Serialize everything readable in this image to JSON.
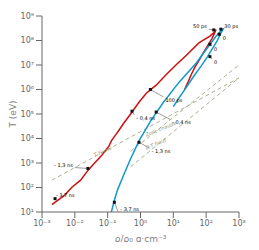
{
  "chart_data": {
    "type": "line",
    "log": true,
    "grid": false,
    "xlabel": "ρ/ρ₀ g·cm⁻³",
    "ylabel": "T (eV)",
    "xlim": [
      0.001,
      1000
    ],
    "ylim": [
      10,
      1000000000
    ],
    "xticks": [
      {
        "value": 0.001,
        "label": "10⁻³"
      },
      {
        "value": 0.01,
        "label": "10⁻²"
      },
      {
        "value": 0.1,
        "label": "10⁻¹"
      },
      {
        "value": 1,
        "label": "10⁰"
      },
      {
        "value": 10,
        "label": "10¹"
      },
      {
        "value": 100,
        "label": "10²"
      },
      {
        "value": 1000,
        "label": "10³"
      }
    ],
    "yticks": [
      {
        "value": 10,
        "label": "10¹"
      },
      {
        "value": 100,
        "label": "10²"
      },
      {
        "value": 1000,
        "label": "10³"
      },
      {
        "value": 10000,
        "label": "10⁴"
      },
      {
        "value": 100000,
        "label": "10⁵"
      },
      {
        "value": 1000000,
        "label": "10⁶"
      },
      {
        "value": 10000000,
        "label": "10⁷"
      },
      {
        "value": 100000000,
        "label": "10⁸"
      },
      {
        "value": 1000000000,
        "label": "10⁹"
      }
    ],
    "series": [
      {
        "color": "#999977",
        "line_style": "dashed",
        "x": [
          0.002,
          1000.0
        ],
        "values": [
          200,
          3000000
        ],
        "label": {
          "text": "T Fermi",
          "x": 0.04,
          "y": 1800
        }
      },
      {
        "color": "#999977",
        "line_style": "dashed",
        "x": [
          0.5,
          1000.0
        ],
        "values": [
          3000,
          10000000
        ],
        "label": {
          "text": "Zone chaude",
          "x": 1.5,
          "y": 12000
        }
      },
      {
        "color": "#999977",
        "line_style": "dashed",
        "x": [
          0.5,
          1000.0
        ],
        "values": [
          700,
          3000000
        ],
        "label": {
          "text": "D-T froid",
          "x": 1.5,
          "y": 3500
        }
      },
      {
        "color": "#cc1111",
        "line_style": "solid",
        "x": [
          0.002,
          0.003,
          0.005,
          0.008,
          0.015,
          0.025,
          0.04,
          0.065,
          0.09,
          0.11,
          0.13,
          0.16,
          0.2,
          0.3,
          0.5,
          0.9,
          1.5,
          3.0,
          6.0,
          12.0,
          25.0,
          60.0,
          130.0,
          180.0,
          200.0,
          200.0,
          180.0,
          150.0,
          110.0,
          80.0,
          60.0,
          45.0,
          35.0,
          28.0,
          22.0
        ],
        "values": [
          20,
          30,
          50,
          100,
          200,
          500,
          1000,
          2000,
          3500,
          5000,
          8000,
          12000,
          18000,
          40000,
          100000,
          300000,
          700000,
          1500000,
          4000000,
          10000000,
          25000000,
          80000000,
          150000000,
          220000000,
          280000000,
          280000000,
          200000000,
          120000000,
          60000000,
          30000000,
          15000000,
          8000000,
          4000000,
          2000000,
          1000000
        ]
      },
      {
        "color": "#1199cc",
        "line_style": "solid",
        "x": [
          0.13,
          0.14,
          0.16,
          0.2,
          0.3,
          0.5,
          0.9,
          2.0,
          5.0,
          15.0,
          50.0,
          120.0,
          200.0,
          280.0,
          320.0,
          330.0,
          330.0,
          310.0,
          270.0,
          220.0,
          160.0,
          110.0,
          70.0,
          45.0,
          30.0,
          20.0,
          14.0,
          10.0
        ],
        "values": [
          10,
          15,
          30,
          80,
          300,
          1500,
          8000,
          50000,
          300000,
          2000000,
          12000000,
          60000000,
          150000000,
          250000000,
          290000000,
          295000000,
          295000000,
          250000000,
          180000000,
          100000000,
          50000000,
          22000000,
          9000000,
          4000000,
          1800000,
          800000,
          400000,
          200000
        ]
      }
    ],
    "annotations": [
      {
        "text": "- 3,7 ns",
        "x": 0.0025,
        "y": 35,
        "text_x": 0.0023,
        "text_y": 38,
        "marker": "square",
        "color": "#111111"
      },
      {
        "text": "- 1,3 ns",
        "x": 0.025,
        "y": 600,
        "text_x": 0.01,
        "text_y": 650,
        "marker": "square",
        "color": "#111111"
      },
      {
        "text": "- 0,4 ns",
        "x": 0.55,
        "y": 130000,
        "text_x": 0.65,
        "text_y": 90000,
        "marker": "square",
        "color": "#111111"
      },
      {
        "text": "100 ps",
        "x": 2.0,
        "y": 1000000,
        "text_x": 5.0,
        "text_y": 500000,
        "marker": "square",
        "color": "#111111"
      },
      {
        "text": "50 ps",
        "x": 170.0,
        "y": 270000000,
        "text_x": 120.0,
        "text_y": 290000000,
        "marker": "square",
        "color": "#111111"
      },
      {
        "text": "0",
        "x": 130.0,
        "y": 70000000,
        "text_x": 150.0,
        "text_y": 60000000,
        "marker": "square",
        "color": "#111111"
      },
      {
        "text": "- 3,7 ns",
        "x": 0.16,
        "y": 25,
        "text_x": 0.21,
        "text_y": 10,
        "marker": "square",
        "color": "#111111"
      },
      {
        "text": "- 1,3 ns",
        "x": 0.9,
        "y": 7000,
        "text_x": 1.9,
        "text_y": 4000,
        "marker": "square",
        "color": "#111111"
      },
      {
        "text": "- 0,4 ns",
        "x": 3.0,
        "y": 120000,
        "text_x": 8.0,
        "text_y": 60000,
        "marker": "square",
        "color": "#111111"
      },
      {
        "text": "30 ps",
        "x": 280.0,
        "y": 290000000,
        "text_x": 310.0,
        "text_y": 295000000,
        "marker": "square",
        "color": "#111111"
      },
      {
        "text": "0",
        "x": 250.0,
        "y": 180000000,
        "text_x": 280.0,
        "text_y": 160000000,
        "marker": "square",
        "color": "#111111"
      },
      {
        "text": "0",
        "x": 130.0,
        "y": 22000000,
        "text_x": 150.0,
        "text_y": 17000000,
        "marker": "square",
        "color": "#111111"
      }
    ]
  }
}
